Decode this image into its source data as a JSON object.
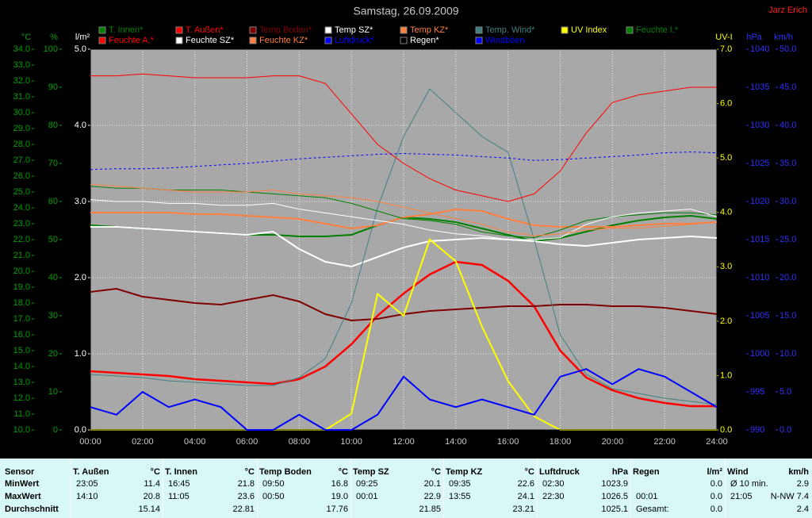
{
  "chart_data": {
    "type": "line",
    "title": "Samstag, 26.09.2009",
    "author": "Jarz Erich",
    "x": [
      0,
      1,
      2,
      3,
      4,
      5,
      6,
      7,
      8,
      9,
      10,
      11,
      12,
      13,
      14,
      15,
      16,
      17,
      18,
      19,
      20,
      21,
      22,
      23,
      24
    ],
    "xlim": [
      0,
      24
    ],
    "xticks": [
      {
        "value": 0,
        "label": "00:00"
      },
      {
        "value": 2,
        "label": "02:00"
      },
      {
        "value": 4,
        "label": "04:00"
      },
      {
        "value": 6,
        "label": "06:00"
      },
      {
        "value": 8,
        "label": "08:00"
      },
      {
        "value": 10,
        "label": "10:00"
      },
      {
        "value": 12,
        "label": "12:00"
      },
      {
        "value": 14,
        "label": "14:00"
      },
      {
        "value": 16,
        "label": "16:00"
      },
      {
        "value": 18,
        "label": "18:00"
      },
      {
        "value": 20,
        "label": "20:00"
      },
      {
        "value": 22,
        "label": "22:00"
      },
      {
        "value": 24,
        "label": "24:00"
      }
    ],
    "grid": true,
    "axes": [
      {
        "label": "°C",
        "color": "#00a000",
        "side": "left",
        "lim": [
          10,
          34
        ],
        "ticks": [
          {
            "value": 10,
            "label": "10.0"
          },
          {
            "value": 11,
            "label": "11.0"
          },
          {
            "value": 12,
            "label": "12.0"
          },
          {
            "value": 13,
            "label": "13.0"
          },
          {
            "value": 14,
            "label": "14.0"
          },
          {
            "value": 15,
            "label": "15.0"
          },
          {
            "value": 16,
            "label": "16.0"
          },
          {
            "value": 17,
            "label": "17.0"
          },
          {
            "value": 18,
            "label": "18.0"
          },
          {
            "value": 19,
            "label": "19.0"
          },
          {
            "value": 20,
            "label": "20.0"
          },
          {
            "value": 21,
            "label": "21.0"
          },
          {
            "value": 22,
            "label": "22.0"
          },
          {
            "value": 23,
            "label": "23.0"
          },
          {
            "value": 24,
            "label": "24.0"
          },
          {
            "value": 25,
            "label": "25.0"
          },
          {
            "value": 26,
            "label": "26.0"
          },
          {
            "value": 27,
            "label": "27.0"
          },
          {
            "value": 28,
            "label": "28.0"
          },
          {
            "value": 29,
            "label": "29.0"
          },
          {
            "value": 30,
            "label": "30.0"
          },
          {
            "value": 31,
            "label": "31.0"
          },
          {
            "value": 32,
            "label": "32.0"
          },
          {
            "value": 33,
            "label": "33.0"
          },
          {
            "value": 34,
            "label": "34.0"
          }
        ]
      },
      {
        "label": "%",
        "color": "#00a000",
        "side": "left",
        "lim": [
          0,
          100
        ],
        "ticks": [
          0,
          10,
          20,
          30,
          40,
          50,
          60,
          70,
          80,
          90,
          100
        ]
      },
      {
        "label": "l/m²",
        "color": "#ffffff",
        "side": "left",
        "lim": [
          0,
          5
        ],
        "ticks": [
          {
            "value": 0,
            "label": "0.0"
          },
          {
            "value": 1,
            "label": "1.0"
          },
          {
            "value": 2,
            "label": "2.0"
          },
          {
            "value": 3,
            "label": "3.0"
          },
          {
            "value": 4,
            "label": "4.0"
          },
          {
            "value": 5,
            "label": "5.0"
          }
        ],
        "grid": true
      },
      {
        "label": "UV-I",
        "color": "#ffff00",
        "side": "right",
        "lim": [
          0,
          7
        ],
        "ticks": [
          {
            "value": 0,
            "label": "0.0"
          },
          {
            "value": 1,
            "label": "1.0"
          },
          {
            "value": 2,
            "label": "2.0"
          },
          {
            "value": 3,
            "label": "3.0"
          },
          {
            "value": 4,
            "label": "4.0"
          },
          {
            "value": 5,
            "label": "5.0"
          },
          {
            "value": 6,
            "label": "6.0"
          },
          {
            "value": 7,
            "label": "7.0"
          }
        ]
      },
      {
        "label": "hPa",
        "color": "#3030ff",
        "side": "right",
        "lim": [
          990,
          1040
        ],
        "ticks": [
          990,
          995,
          1000,
          1005,
          1010,
          1015,
          1020,
          1025,
          1030,
          1035,
          1040
        ]
      },
      {
        "label": "km/h",
        "color": "#3030ff",
        "side": "right",
        "lim": [
          0,
          50
        ],
        "ticks": [
          {
            "value": 0,
            "label": "0.0"
          },
          {
            "value": 5,
            "label": "5.0"
          },
          {
            "value": 10,
            "label": "10.0"
          },
          {
            "value": 15,
            "label": "15.0"
          },
          {
            "value": 20,
            "label": "20.0"
          },
          {
            "value": 25,
            "label": "25.0"
          },
          {
            "value": 30,
            "label": "30.0"
          },
          {
            "value": 35,
            "label": "35.0"
          },
          {
            "value": 40,
            "label": "40.0"
          },
          {
            "value": 45,
            "label": "45.0"
          },
          {
            "value": 50,
            "label": "50.0"
          }
        ]
      }
    ],
    "series": [
      {
        "name": "T. Innen*",
        "color": "#008000",
        "axis": 0,
        "width": 2,
        "values": [
          22.9,
          22.8,
          22.7,
          22.6,
          22.5,
          22.4,
          22.3,
          22.3,
          22.2,
          22.2,
          22.3,
          22.9,
          23.4,
          23.3,
          23.1,
          22.7,
          22.3,
          21.9,
          22.1,
          22.5,
          22.9,
          23.2,
          23.4,
          23.5,
          23.3
        ]
      },
      {
        "name": "T. Außen*",
        "color": "#ff0000",
        "axis": 0,
        "width": 2.5,
        "values": [
          13.7,
          13.6,
          13.5,
          13.4,
          13.2,
          13.1,
          13.0,
          12.9,
          13.2,
          14.0,
          15.4,
          17.2,
          18.6,
          19.8,
          20.6,
          20.4,
          19.4,
          17.8,
          15.0,
          13.3,
          12.5,
          12.0,
          11.7,
          11.5,
          11.5
        ]
      },
      {
        "name": "Temp Boden*",
        "color": "#800000",
        "axis": 0,
        "width": 2,
        "values": [
          18.7,
          18.9,
          18.4,
          18.2,
          18.0,
          17.9,
          18.2,
          18.5,
          18.1,
          17.3,
          16.9,
          17.0,
          17.3,
          17.5,
          17.6,
          17.7,
          17.8,
          17.8,
          17.9,
          17.9,
          17.8,
          17.8,
          17.7,
          17.5,
          17.3
        ]
      },
      {
        "name": "Temp SZ*",
        "color": "#ffffff",
        "axis": 0,
        "width": 2,
        "values": [
          22.8,
          22.8,
          22.7,
          22.6,
          22.5,
          22.4,
          22.3,
          22.5,
          21.4,
          20.6,
          20.3,
          20.9,
          21.5,
          21.9,
          22.0,
          22.1,
          22.0,
          21.9,
          21.7,
          21.6,
          21.8,
          22.0,
          22.1,
          22.2,
          22.1
        ]
      },
      {
        "name": "Temp KZ*",
        "color": "#ff8040",
        "axis": 0,
        "width": 2,
        "values": [
          23.7,
          23.7,
          23.7,
          23.7,
          23.6,
          23.6,
          23.5,
          23.4,
          23.3,
          23.0,
          22.7,
          22.9,
          23.4,
          23.6,
          23.9,
          23.8,
          23.3,
          22.9,
          22.8,
          22.8,
          22.8,
          22.9,
          23.0,
          23.0,
          23.1
        ]
      },
      {
        "name": "Temp. Wind*",
        "color": "#408080",
        "axis": 0,
        "width": 1,
        "values": [
          13.5,
          13.4,
          13.3,
          13.1,
          13.0,
          12.9,
          12.8,
          12.8,
          13.3,
          14.5,
          18.0,
          24.0,
          28.5,
          31.5,
          30.0,
          28.5,
          27.5,
          22.0,
          16.0,
          13.5,
          12.6,
          12.3,
          12.0,
          11.8,
          11.6
        ]
      },
      {
        "name": "UV Index",
        "color": "#ffff00",
        "axis": 3,
        "width": 2,
        "values": [
          0,
          0,
          0,
          0,
          0,
          0,
          0,
          0,
          0,
          0,
          0.3,
          2.5,
          2.1,
          3.5,
          3.1,
          1.9,
          0.9,
          0.25,
          0,
          0,
          0,
          0,
          0,
          0,
          0
        ]
      },
      {
        "name": "Feuchte I.*",
        "color": "#008000",
        "axis": 1,
        "width": 1,
        "values": [
          64,
          63.5,
          63.5,
          63,
          63,
          63,
          62.5,
          62,
          61.5,
          61,
          59.5,
          57.5,
          55.5,
          55,
          54,
          52,
          51,
          50.5,
          52.5,
          55,
          56,
          56.5,
          57,
          57,
          56.5
        ]
      },
      {
        "name": "Feuchte A.*",
        "color": "#ff0000",
        "axis": 1,
        "width": 1,
        "values": [
          93,
          93,
          93.5,
          93,
          92.5,
          92.5,
          92.5,
          93,
          93,
          91,
          83,
          75,
          70,
          66,
          63,
          61.5,
          60,
          62,
          68,
          78,
          86,
          88,
          89,
          90,
          90
        ]
      },
      {
        "name": "Feuchte SZ*",
        "color": "#ffffff",
        "axis": 1,
        "width": 1,
        "values": [
          60.5,
          60,
          60,
          59.5,
          59.5,
          59,
          59,
          59.5,
          58,
          57,
          56,
          55,
          54,
          52.5,
          51.5,
          51,
          50,
          50,
          50.5,
          54,
          56,
          57,
          57.5,
          58,
          56
        ]
      },
      {
        "name": "Feuchte KZ*",
        "color": "#ff8040",
        "axis": 1,
        "width": 1,
        "values": [
          64.5,
          64,
          63.5,
          63,
          62.5,
          62.5,
          62.5,
          63,
          62,
          61.5,
          61,
          60,
          58.5,
          57,
          55.5,
          54,
          52,
          51,
          51.5,
          52.5,
          53,
          53,
          53.5,
          54,
          54.5
        ]
      },
      {
        "name": "Luftdruck*",
        "color": "#0000ff",
        "axis": 4,
        "width": 1,
        "dashed": true,
        "values": [
          1024.2,
          1024.3,
          1024.3,
          1024.4,
          1024.6,
          1024.8,
          1025.0,
          1025.3,
          1025.6,
          1025.8,
          1026.0,
          1026.2,
          1026.3,
          1026.2,
          1026.1,
          1025.9,
          1025.7,
          1025.4,
          1025.5,
          1025.7,
          1025.9,
          1026.1,
          1026.4,
          1026.5,
          1026.4
        ]
      },
      {
        "name": "Regen*",
        "color": "#000000",
        "axis": 2,
        "width": 1,
        "values": [
          0,
          0,
          0,
          0,
          0,
          0,
          0,
          0,
          0,
          0,
          0,
          0,
          0,
          0,
          0,
          0,
          0,
          0,
          0,
          0,
          0,
          0,
          0,
          0,
          0
        ]
      },
      {
        "name": "Windböen",
        "color": "#0000ff",
        "axis": 5,
        "width": 2,
        "values": [
          3,
          2,
          5,
          3,
          4,
          3,
          0,
          0,
          2,
          0,
          0,
          2,
          7,
          4,
          3,
          4,
          3,
          2,
          7,
          8,
          6,
          8,
          7,
          5,
          3
        ]
      }
    ]
  },
  "table": {
    "row_labels": [
      "Sensor",
      "MinWert",
      "MaxWert",
      "Durchschnitt"
    ],
    "columns": [
      {
        "header": "T. Außen",
        "unit": "°C",
        "rows": [
          [
            "23:05",
            "11.4"
          ],
          [
            "14:10",
            "20.8"
          ],
          [
            "15.14"
          ]
        ]
      },
      {
        "header": "T. Innen",
        "unit": "°C",
        "rows": [
          [
            "16:45",
            "21.8"
          ],
          [
            "11:05",
            "23.6"
          ],
          [
            "22.81"
          ]
        ]
      },
      {
        "header": "Temp Boden",
        "unit": "°C",
        "rows": [
          [
            "09:50",
            "16.8"
          ],
          [
            "00:50",
            "19.0"
          ],
          [
            "17.76"
          ]
        ]
      },
      {
        "header": "Temp SZ",
        "unit": "°C",
        "rows": [
          [
            "09:25",
            "20.1"
          ],
          [
            "00:01",
            "22.9"
          ],
          [
            "21.85"
          ]
        ]
      },
      {
        "header": "Temp KZ",
        "unit": "°C",
        "rows": [
          [
            "09:35",
            "22.6"
          ],
          [
            "13:55",
            "24.1"
          ],
          [
            "23.21"
          ]
        ]
      },
      {
        "header": "Luftdruck",
        "unit": "hPa",
        "rows": [
          [
            "02:30",
            "1023.9"
          ],
          [
            "22:30",
            "1026.5"
          ],
          [
            "1025.1"
          ]
        ]
      },
      {
        "header": "Regen",
        "unit": "l/m²",
        "rows": [
          [
            "0.0"
          ],
          [
            "00:01",
            "0.0"
          ],
          [
            "Gesamt:",
            "0.0"
          ]
        ]
      },
      {
        "header": "Wind",
        "unit": "km/h",
        "rows": [
          [
            "Ø 10 min.",
            "2.9"
          ],
          [
            "21:05",
            "N-NW 7.4"
          ],
          [
            "2.4"
          ]
        ]
      }
    ]
  }
}
